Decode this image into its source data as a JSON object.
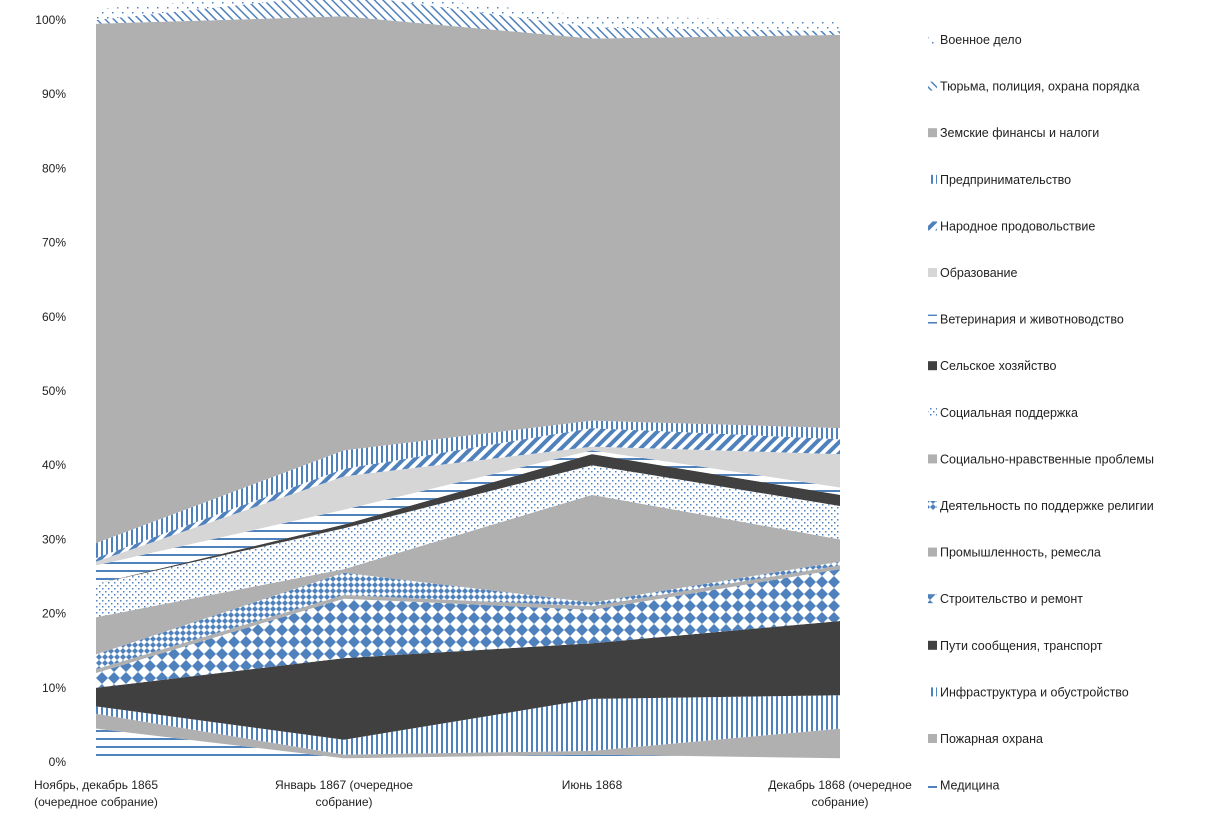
{
  "chart_data": {
    "type": "area",
    "stacked_percent": true,
    "categories": [
      [
        "Ноябрь, декабрь 1865",
        "(очередное собрание)"
      ],
      [
        "Январь 1867 (очередное",
        "собрание)"
      ],
      [
        "Июнь 1868"
      ],
      [
        "Декабрь 1868 (очередное",
        "собрание)"
      ]
    ],
    "ylim": [
      0,
      100
    ],
    "yticks": [
      "0%",
      "10%",
      "20%",
      "30%",
      "40%",
      "50%",
      "60%",
      "70%",
      "80%",
      "90%",
      "100%"
    ],
    "series": [
      {
        "name": "Медицина",
        "values": [
          4.5,
          0.5,
          1.0,
          0.5
        ],
        "pattern": "hlines"
      },
      {
        "name": "Пожарная охрана",
        "values": [
          2.0,
          0.5,
          0.5,
          4.0
        ],
        "pattern": "gray"
      },
      {
        "name": "Инфраструктура и обустройство",
        "values": [
          1.0,
          2.0,
          7.0,
          4.5
        ],
        "pattern": "vlines"
      },
      {
        "name": "Пути сообщения, транспорт",
        "values": [
          2.5,
          11.0,
          7.5,
          10.0
        ],
        "pattern": "dark"
      },
      {
        "name": "Строительство и ремонт",
        "values": [
          2.0,
          8.0,
          4.5,
          7.0
        ],
        "pattern": "diamond"
      },
      {
        "name": "Промышленность, ремесла",
        "values": [
          0.5,
          0.5,
          0.5,
          0.5
        ],
        "pattern": "gray"
      },
      {
        "name": "Деятельность по поддержке религии",
        "values": [
          2.0,
          3.0,
          0.5,
          0.5
        ],
        "pattern": "diamondsmall"
      },
      {
        "name": "Социально-нравственные проблемы",
        "values": [
          5.0,
          0.5,
          14.5,
          3.0
        ],
        "pattern": "gray"
      },
      {
        "name": "Социальная поддержка",
        "values": [
          4.5,
          5.5,
          4.0,
          4.5
        ],
        "pattern": "dots"
      },
      {
        "name": "Сельское хозяйство",
        "values": [
          0.0,
          0.5,
          1.5,
          1.5
        ],
        "pattern": "dark"
      },
      {
        "name": "Ветеринария и животноводство",
        "values": [
          2.5,
          2.0,
          0.5,
          1.0
        ],
        "pattern": "hlines"
      },
      {
        "name": "Образование",
        "values": [
          0.5,
          4.5,
          0.5,
          4.5
        ],
        "pattern": "light"
      },
      {
        "name": "Народное продовольствие",
        "values": [
          0.5,
          1.0,
          2.5,
          2.0
        ],
        "pattern": "diag"
      },
      {
        "name": "Предпринимательство",
        "values": [
          2.0,
          2.5,
          1.0,
          1.5
        ],
        "pattern": "vlines"
      },
      {
        "name": "Земские финансы и налоги",
        "values": [
          70.0,
          58.5,
          51.5,
          53.0
        ],
        "pattern": "gray"
      },
      {
        "name": "Тюрьма, полиция, охрана порядка",
        "values": [
          0.5,
          3.0,
          1.5,
          0.5
        ],
        "pattern": "backdiag"
      },
      {
        "name": "Военное дело",
        "values": [
          1.5,
          0.5,
          1.5,
          1.5
        ],
        "pattern": "sparsedots"
      }
    ],
    "legend": "right"
  }
}
